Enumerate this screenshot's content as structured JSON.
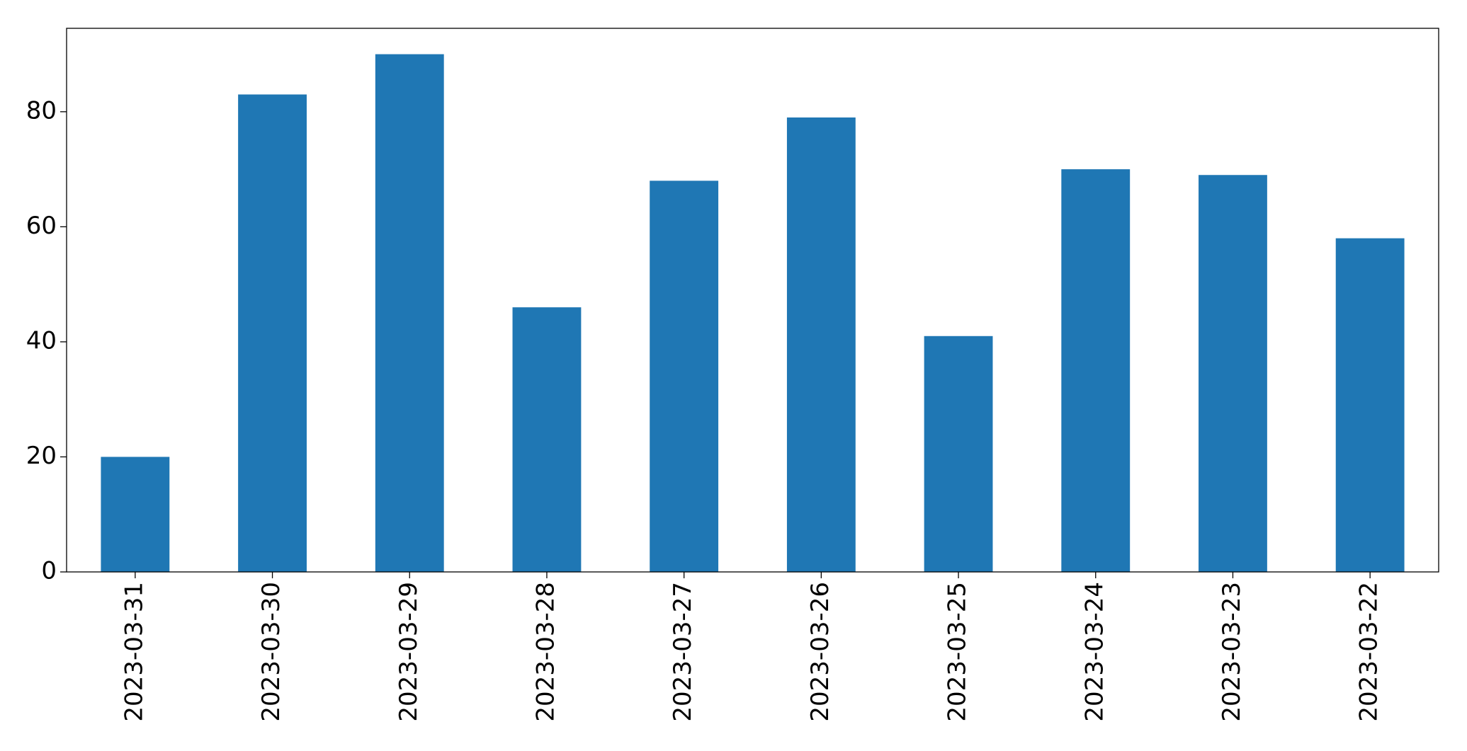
{
  "chart_data": {
    "type": "bar",
    "categories": [
      "2023-03-31",
      "2023-03-30",
      "2023-03-29",
      "2023-03-28",
      "2023-03-27",
      "2023-03-26",
      "2023-03-25",
      "2023-03-24",
      "2023-03-23",
      "2023-03-22"
    ],
    "values": [
      20,
      83,
      90,
      46,
      68,
      79,
      41,
      70,
      69,
      58
    ],
    "color": "#1f77b4",
    "ylim": [
      0,
      94.5
    ],
    "yticks": [
      0,
      20,
      40,
      60,
      80
    ],
    "grid": false
  }
}
